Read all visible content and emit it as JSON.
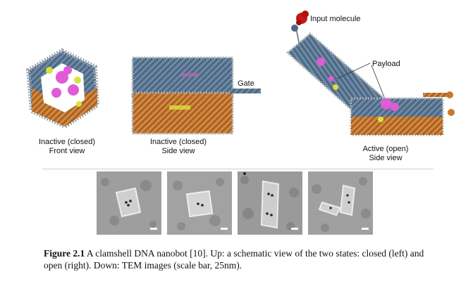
{
  "labels": {
    "inactive_front_line1": "Inactive (closed)",
    "inactive_front_line2": "Front view",
    "inactive_side_line1": "Inactive (closed)",
    "inactive_side_line2": "Side view",
    "active_line1": "Active (open)",
    "active_line2": "Side view",
    "gate": "Gate",
    "payload": "Payload",
    "input_molecule": "Input molecule"
  },
  "caption": {
    "figure_label": "Figure 2.1",
    "text": "A clamshell DNA nanobot [10]. Up: a schematic view of the two states: closed (left) and open (right). Down: TEM images (scale bar, 25nm)."
  },
  "colors": {
    "blue_strand": "#5f7d99",
    "orange_strand": "#c9782f",
    "payload": "#e05bd8",
    "input_molecule": "#c41a1a",
    "aptamer": "#d9e23b",
    "tem_background": "#9b9b9b"
  }
}
